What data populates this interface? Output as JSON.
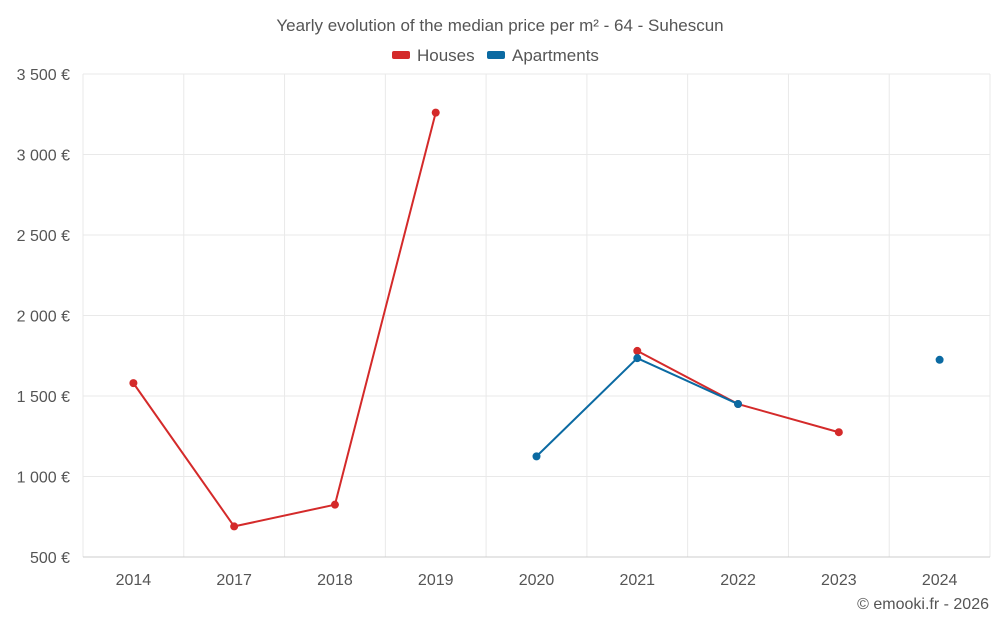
{
  "chart_data": {
    "type": "line",
    "title": "Yearly evolution of the median price per m² - 64 - Suhescun",
    "categories": [
      "2014",
      "2017",
      "2018",
      "2019",
      "2020",
      "2021",
      "2022",
      "2023",
      "2024"
    ],
    "ylim": [
      500,
      3500
    ],
    "yticks": [
      500,
      1000,
      1500,
      2000,
      2500,
      3000,
      3500
    ],
    "ytick_labels": [
      "500 €",
      "1 000 €",
      "1 500 €",
      "2 000 €",
      "2 500 €",
      "3 000 €",
      "3 500 €"
    ],
    "grid": true,
    "legend_position": "top-center",
    "series": [
      {
        "name": "Houses",
        "color": "#d42a2a",
        "values": [
          1580,
          690,
          825,
          3260,
          null,
          1780,
          1450,
          1275,
          null
        ]
      },
      {
        "name": "Apartments",
        "color": "#0b6aa2",
        "values": [
          null,
          null,
          null,
          null,
          1125,
          1735,
          1450,
          null,
          1725
        ]
      }
    ],
    "credit": "© emooki.fr - 2026"
  }
}
